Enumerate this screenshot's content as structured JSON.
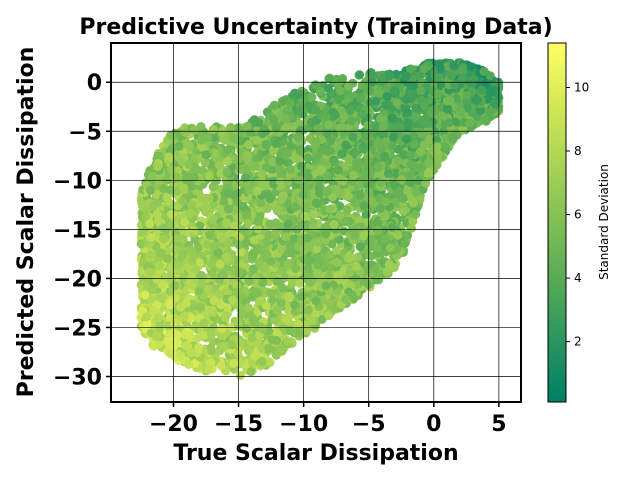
{
  "chart_data": {
    "type": "scatter",
    "title": "Predictive Uncertainty (Training Data)",
    "xlabel": "True Scalar Dissipation",
    "ylabel": "Predicted Scalar Dissipation",
    "xlim": [
      -24.8,
      6.7
    ],
    "ylim": [
      -32.6,
      4.0
    ],
    "xticks": [
      -20,
      -15,
      -10,
      -5,
      0,
      5
    ],
    "yticks": [
      0,
      -5,
      -10,
      -15,
      -20,
      -25,
      -30
    ],
    "grid": true,
    "colorbar": {
      "label": "Standard Deviation",
      "range": [
        0.1,
        11.4
      ],
      "ticks": [
        2,
        4,
        6,
        8,
        10
      ],
      "colormap": [
        "#007f66",
        "#2a9460",
        "#55aa55",
        "#80bf55",
        "#aad455",
        "#d4e955",
        "#ffff66"
      ]
    },
    "series": [
      {
        "points_note": "dense cloud",
        "x": [
          -22.5,
          -22,
          -21.5,
          -21,
          -20.5,
          -20,
          -19.5,
          -19,
          -18.5,
          -18,
          -17.5,
          -17,
          -16.5,
          -16,
          -15.5,
          -15,
          -14.5,
          -14,
          -13.5,
          -13,
          -12.5,
          -12,
          -11.5,
          -11,
          -10.5,
          -10,
          -9.5,
          -9,
          -8.5,
          -8,
          -7.5,
          -7,
          -6.5,
          -6,
          -5.5,
          -5,
          -4.5,
          -4,
          -3.5,
          -3,
          -2.5,
          -2,
          -1.5,
          -1,
          -0.5,
          0,
          0.5,
          1,
          1.5,
          2,
          2.5,
          3,
          3.5,
          4,
          4.5,
          5
        ],
        "y_low": [
          -25,
          -26,
          -27,
          -27,
          -27.5,
          -28,
          -28.5,
          -29,
          -29,
          -29.5,
          -29.5,
          -29.5,
          -29.5,
          -29.5,
          -29.5,
          -30,
          -30,
          -29.5,
          -29,
          -29,
          -28.5,
          -28,
          -27.5,
          -27,
          -26.5,
          -26,
          -25.5,
          -25,
          -24.5,
          -24,
          -23.5,
          -23,
          -22.5,
          -22,
          -21.5,
          -21,
          -20.5,
          -20,
          -19.5,
          -19,
          -18,
          -16,
          -14,
          -12,
          -10,
          -9,
          -8,
          -7,
          -6,
          -5,
          -5,
          -4.5,
          -4,
          -4,
          -3.5,
          -3
        ],
        "y_high": [
          -11,
          -9.5,
          -8,
          -6.5,
          -5.5,
          -5,
          -4.5,
          -4.5,
          -4.5,
          -4.5,
          -4.5,
          -4.5,
          -4.5,
          -4.5,
          -4.5,
          -4,
          -4,
          -4,
          -3.5,
          -3,
          -2.5,
          -2,
          -1.5,
          -1,
          -1,
          -0.5,
          -0.5,
          0,
          0,
          0.5,
          0.5,
          0.5,
          0.5,
          1,
          1,
          1,
          1,
          1,
          1,
          1,
          1,
          1.5,
          1.5,
          1.5,
          2,
          2,
          2,
          2,
          2,
          2,
          2,
          1.5,
          1.5,
          1,
          0.5,
          0
        ]
      }
    ]
  }
}
